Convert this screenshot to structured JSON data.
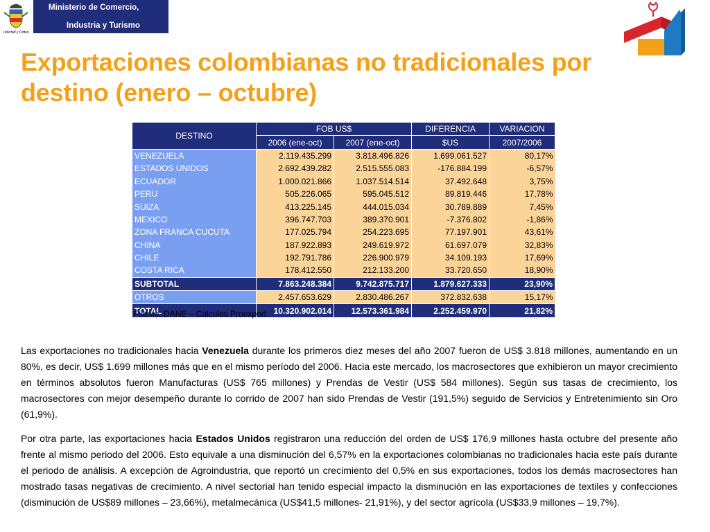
{
  "header": {
    "ministry_line1": "Ministerio de Comercio,",
    "ministry_line2": "Industria y Turismo",
    "seal_caption": "Libertad y Orden",
    "colors": {
      "band": "#1f2d7a",
      "accent": "#f5a01a",
      "logo_red": "#d9262c",
      "logo_blue": "#1f7ac2"
    }
  },
  "title": "Exportaciones colombianas no tradicionales por destino (enero – octubre)",
  "table": {
    "headers": {
      "destino": "DESTINO",
      "fob": "FOB US$",
      "y2006": "2006 (ene-oct)",
      "y2007": "2007 (ene-oct)",
      "diferencia_top": "DIFERENCIA",
      "diferencia_bottom": "$US",
      "variacion_top": "VARIACION",
      "variacion_bottom": "2007/2006"
    },
    "rows": [
      [
        "VENEZUELA",
        "2.119.435.299",
        "3.818.496.826",
        "1.699.061.527",
        "80,17%"
      ],
      [
        "ESTADOS UNIDOS",
        "2.692.439.282",
        "2.515.555.083",
        "-176.884.199",
        "-6,57%"
      ],
      [
        "ECUADOR",
        "1.000.021.866",
        "1.037.514.514",
        "37.492.648",
        "3,75%"
      ],
      [
        "PERU",
        "505.226.065",
        "595.045.512",
        "89.819.446",
        "17,78%"
      ],
      [
        "SUIZA",
        "413.225.145",
        "444.015.034",
        "30.789.889",
        "7,45%"
      ],
      [
        "MEXICO",
        "396.747.703",
        "389.370.901",
        "-7.376.802",
        "-1,86%"
      ],
      [
        "ZONA FRANCA CUCUTA",
        "177.025.794",
        "254.223.695",
        "77.197.901",
        "43,61%"
      ],
      [
        "CHINA",
        "187.922.893",
        "249.619.972",
        "61.697.079",
        "32,83%"
      ],
      [
        "CHILE",
        "192.791.786",
        "226.900.979",
        "34.109.193",
        "17,69%"
      ],
      [
        "COSTA RICA",
        "178.412.550",
        "212.133.200",
        "33.720.650",
        "18,90%"
      ]
    ],
    "subtotal": [
      "SUBTOTAL",
      "7.863.248.384",
      "9.742.875.717",
      "1.879.627.333",
      "23,90%"
    ],
    "otros": [
      "OTROS",
      "2.457.653.629",
      "2.830.486.267",
      "372.832.638",
      "15,17%"
    ],
    "total": [
      "TOTAL",
      "10.320.902.014",
      "12.573.361.984",
      "2.252.459.970",
      "21,82%"
    ]
  },
  "source": "Fuente: DANE – Cálculos Proexport",
  "paragraph1": {
    "pre": "Las exportaciones no tradicionales hacia ",
    "bold": "Venezuela",
    "post": " durante los primeros diez meses del año 2007 fueron de US$ 3.818 millones, aumentando en un 80%, es decir, US$ 1.699 millones más que en el mismo período del 2006. Hacia este mercado, los macrosectores que exhibieron un  mayor crecimiento en términos absolutos fueron Manufacturas (US$ 765 millones) y Prendas de Vestir (US$ 584 millones). Según sus tasas de crecimiento, los macrosectores con mejor desempeño durante lo corrido de 2007 han sido Prendas de Vestir (191,5%) seguido de Servicios y Entretenimiento sin Oro (61,9%)."
  },
  "paragraph2": {
    "pre": "Por otra parte, las exportaciones hacia ",
    "bold": "Estados Unidos",
    "post": " registraron una reducción del orden de US$ 176,9 millones hasta octubre del presente año frente al mismo periodo del 2006. Esto equivale a una disminución del 6,57% en la exportaciones colombianas no tradicionales hacia este país durante el periodo de análisis. A excepción de Agroindustria, que reportó un crecimiento del 0,5% en sus exportaciones, todos los demás macrosectores han mostrado tasas negativas de crecimiento. A nivel sectorial han tenido especial impacto la disminución en las exportaciones de textiles y confecciones (disminución de US$89 millones – 23,66%), metalmecánica (US$41,5 millones- 21,91%),  y del sector agrícola (US$33,9 millones – 19,7%)."
  }
}
